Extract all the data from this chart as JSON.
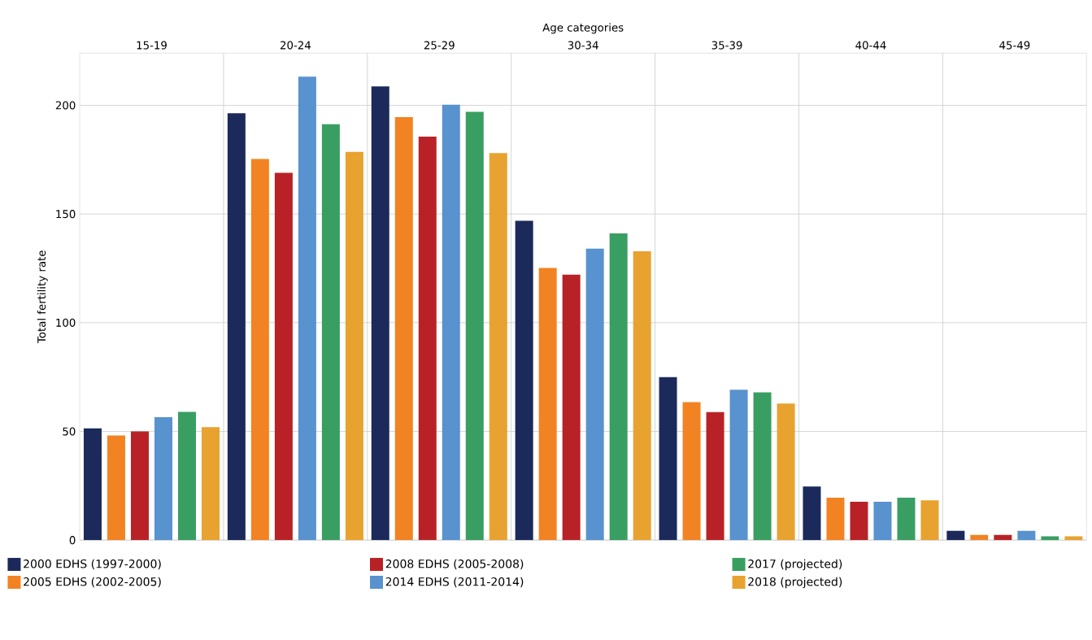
{
  "chart_data": {
    "type": "bar",
    "xlabel": "Age categories",
    "ylabel": "Total fertility rate",
    "categories": [
      "15-19",
      "20-24",
      "25-29",
      "30-34",
      "35-39",
      "40-44",
      "45-49"
    ],
    "series": [
      {
        "name": "2000 EDHS (1997-2000)",
        "color": "#1b2a5a",
        "values": [
          51.4,
          196.4,
          208.7,
          146.9,
          75.0,
          24.7,
          4.3
        ]
      },
      {
        "name": "2005 EDHS (2002-2005)",
        "color": "#f28323",
        "values": [
          48.1,
          175.3,
          194.6,
          125.2,
          63.5,
          19.5,
          2.4
        ]
      },
      {
        "name": "2008 EDHS (2005-2008)",
        "color": "#b82226",
        "values": [
          50.0,
          169.0,
          185.6,
          122.1,
          58.9,
          17.6,
          2.4
        ]
      },
      {
        "name": "2014 EDHS (2011-2014)",
        "color": "#5892cf",
        "values": [
          56.5,
          213.2,
          200.3,
          134.1,
          69.2,
          17.6,
          4.3
        ]
      },
      {
        "name": "2017 (projected)",
        "color": "#399e62",
        "values": [
          59.0,
          191.3,
          197.0,
          141.1,
          68.0,
          19.5,
          1.7
        ]
      },
      {
        "name": "2018 (projected)",
        "color": "#e8a22f",
        "values": [
          52.0,
          178.6,
          178.0,
          132.9,
          62.8,
          18.3,
          1.7
        ]
      }
    ],
    "ylim": [
      0,
      224
    ],
    "yticks": [
      0,
      50,
      100,
      150,
      200
    ],
    "grid": true,
    "legend": "bottom left"
  }
}
